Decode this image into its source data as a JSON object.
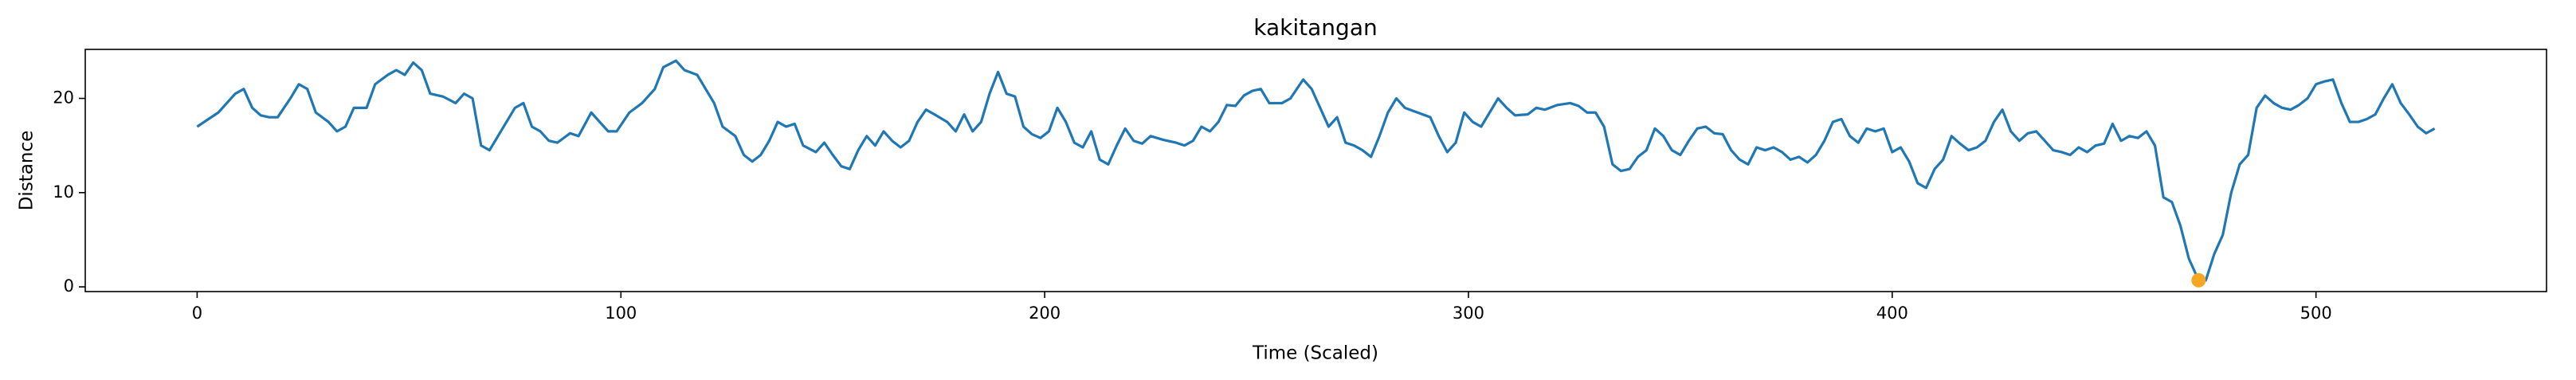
{
  "chart_data": {
    "type": "line",
    "title": "kakitangan",
    "x_label": "Time (Scaled)",
    "y_label": "Distance",
    "xlim": [
      -26.4,
      554.4
    ],
    "ylim": [
      -0.5,
      25.2
    ],
    "xticks": [
      0,
      100,
      200,
      300,
      400,
      500
    ],
    "yticks": [
      0,
      10,
      20
    ],
    "line": {
      "color": "#1f77b4",
      "x": [
        0,
        5,
        9,
        11,
        13,
        15,
        17,
        19,
        22,
        24,
        26,
        28,
        31,
        33,
        35,
        37,
        40,
        42,
        45,
        47,
        49,
        51,
        53,
        55,
        58,
        61,
        63,
        65,
        67,
        69,
        71,
        73,
        75,
        77,
        79,
        81,
        83,
        85,
        88,
        90,
        93,
        95,
        97,
        99,
        102,
        105,
        108,
        110,
        113,
        115,
        118,
        120,
        122,
        124,
        127,
        129,
        131,
        133,
        135,
        137,
        139,
        141,
        143,
        146,
        148,
        150,
        152,
        154,
        156,
        158,
        160,
        162,
        164,
        166,
        168,
        170,
        172,
        174,
        177,
        179,
        181,
        183,
        185,
        187,
        189,
        191,
        193,
        195,
        197,
        199,
        201,
        203,
        205,
        207,
        209,
        211,
        213,
        215,
        217,
        219,
        221,
        223,
        225,
        228,
        231,
        233,
        235,
        237,
        239,
        241,
        243,
        245,
        247,
        249,
        251,
        253,
        256,
        258,
        261,
        263,
        265,
        267,
        269,
        271,
        273,
        275,
        277,
        279,
        281,
        283,
        285,
        288,
        291,
        293,
        295,
        297,
        299,
        301,
        303,
        305,
        307,
        309,
        311,
        314,
        316,
        318,
        321,
        324,
        326,
        328,
        330,
        332,
        334,
        336,
        338,
        340,
        342,
        344,
        346,
        348,
        350,
        352,
        354,
        356,
        358,
        360,
        362,
        364,
        366,
        368,
        370,
        372,
        374,
        376,
        378,
        380,
        382,
        384,
        386,
        388,
        390,
        392,
        394,
        396,
        398,
        400,
        402,
        404,
        406,
        408,
        410,
        412,
        414,
        416,
        418,
        420,
        422,
        424,
        426,
        428,
        430,
        432,
        434,
        436,
        438,
        440,
        442,
        444,
        446,
        448,
        450,
        452,
        454,
        456,
        458,
        460,
        462,
        464,
        466,
        468,
        470,
        472,
        474,
        476,
        478,
        480,
        482,
        484,
        486,
        488,
        490,
        492,
        494,
        496,
        498,
        500,
        502,
        504,
        506,
        508,
        510,
        512,
        514,
        516,
        518,
        520,
        522,
        524,
        526,
        528
      ],
      "values": [
        17,
        18.5,
        20.5,
        21,
        19,
        18.2,
        18,
        18,
        20,
        21.5,
        21,
        18.5,
        17.5,
        16.5,
        17,
        19,
        19,
        21.5,
        22.5,
        23,
        22.5,
        23.8,
        23,
        20.5,
        20.2,
        19.5,
        20.5,
        20,
        15,
        14.5,
        16,
        17.5,
        19,
        19.5,
        17,
        16.5,
        15.5,
        15.3,
        16.3,
        16,
        18.5,
        17.5,
        16.5,
        16.5,
        18.5,
        19.5,
        21,
        23.3,
        24,
        23,
        22.5,
        21,
        19.5,
        17,
        16,
        14,
        13.3,
        14,
        15.5,
        17.5,
        17,
        17.3,
        15,
        14.3,
        15.3,
        14,
        12.8,
        12.5,
        14.5,
        16,
        15,
        16.5,
        15.5,
        14.8,
        15.5,
        17.5,
        18.8,
        18.3,
        17.5,
        16.5,
        18.3,
        16.5,
        17.5,
        20.5,
        22.8,
        20.5,
        20.2,
        17,
        16.2,
        15.8,
        16.5,
        19,
        17.5,
        15.3,
        14.8,
        16.5,
        13.5,
        13,
        15,
        16.8,
        15.5,
        15.2,
        16,
        15.6,
        15.3,
        15,
        15.5,
        17,
        16.5,
        17.5,
        19.3,
        19.2,
        20.3,
        20.8,
        21,
        19.5,
        19.5,
        20,
        22,
        21,
        19,
        17,
        18,
        15.3,
        15,
        14.5,
        13.8,
        16,
        18.5,
        20,
        19,
        18.5,
        18,
        16,
        14.3,
        15.3,
        18.5,
        17.5,
        17,
        18.5,
        20,
        19,
        18.2,
        18.3,
        19,
        18.8,
        19.3,
        19.5,
        19.2,
        18.5,
        18.5,
        17,
        13,
        12.3,
        12.5,
        13.8,
        14.5,
        16.8,
        16,
        14.5,
        14,
        15.5,
        16.8,
        17,
        16.3,
        16.2,
        14.5,
        13.5,
        13,
        14.8,
        14.5,
        14.8,
        14.3,
        13.5,
        13.8,
        13.2,
        14,
        15.5,
        17.5,
        17.8,
        16,
        15.3,
        16.8,
        16.5,
        16.8,
        14.3,
        14.8,
        13.3,
        11,
        10.5,
        12.5,
        13.5,
        16,
        15.2,
        14.5,
        14.8,
        15.5,
        17.5,
        18.8,
        16.5,
        15.5,
        16.3,
        16.5,
        15.5,
        14.5,
        14.3,
        14,
        14.8,
        14.3,
        15,
        15.2,
        17.3,
        15.5,
        16,
        15.8,
        16.5,
        15,
        9.5,
        9,
        6.5,
        3,
        1,
        0.7,
        3.5,
        5.5,
        10,
        13,
        14,
        19,
        20.3,
        19.5,
        19,
        18.8,
        19.3,
        20,
        21.5,
        21.8,
        22,
        19.5,
        17.5,
        17.5,
        17.8,
        18.3,
        20,
        21.5,
        19.5,
        18.3,
        17,
        16.3,
        16.8
      ]
    },
    "marker": {
      "x": 472.3,
      "y": 0.7,
      "color": "#f5a623"
    }
  }
}
